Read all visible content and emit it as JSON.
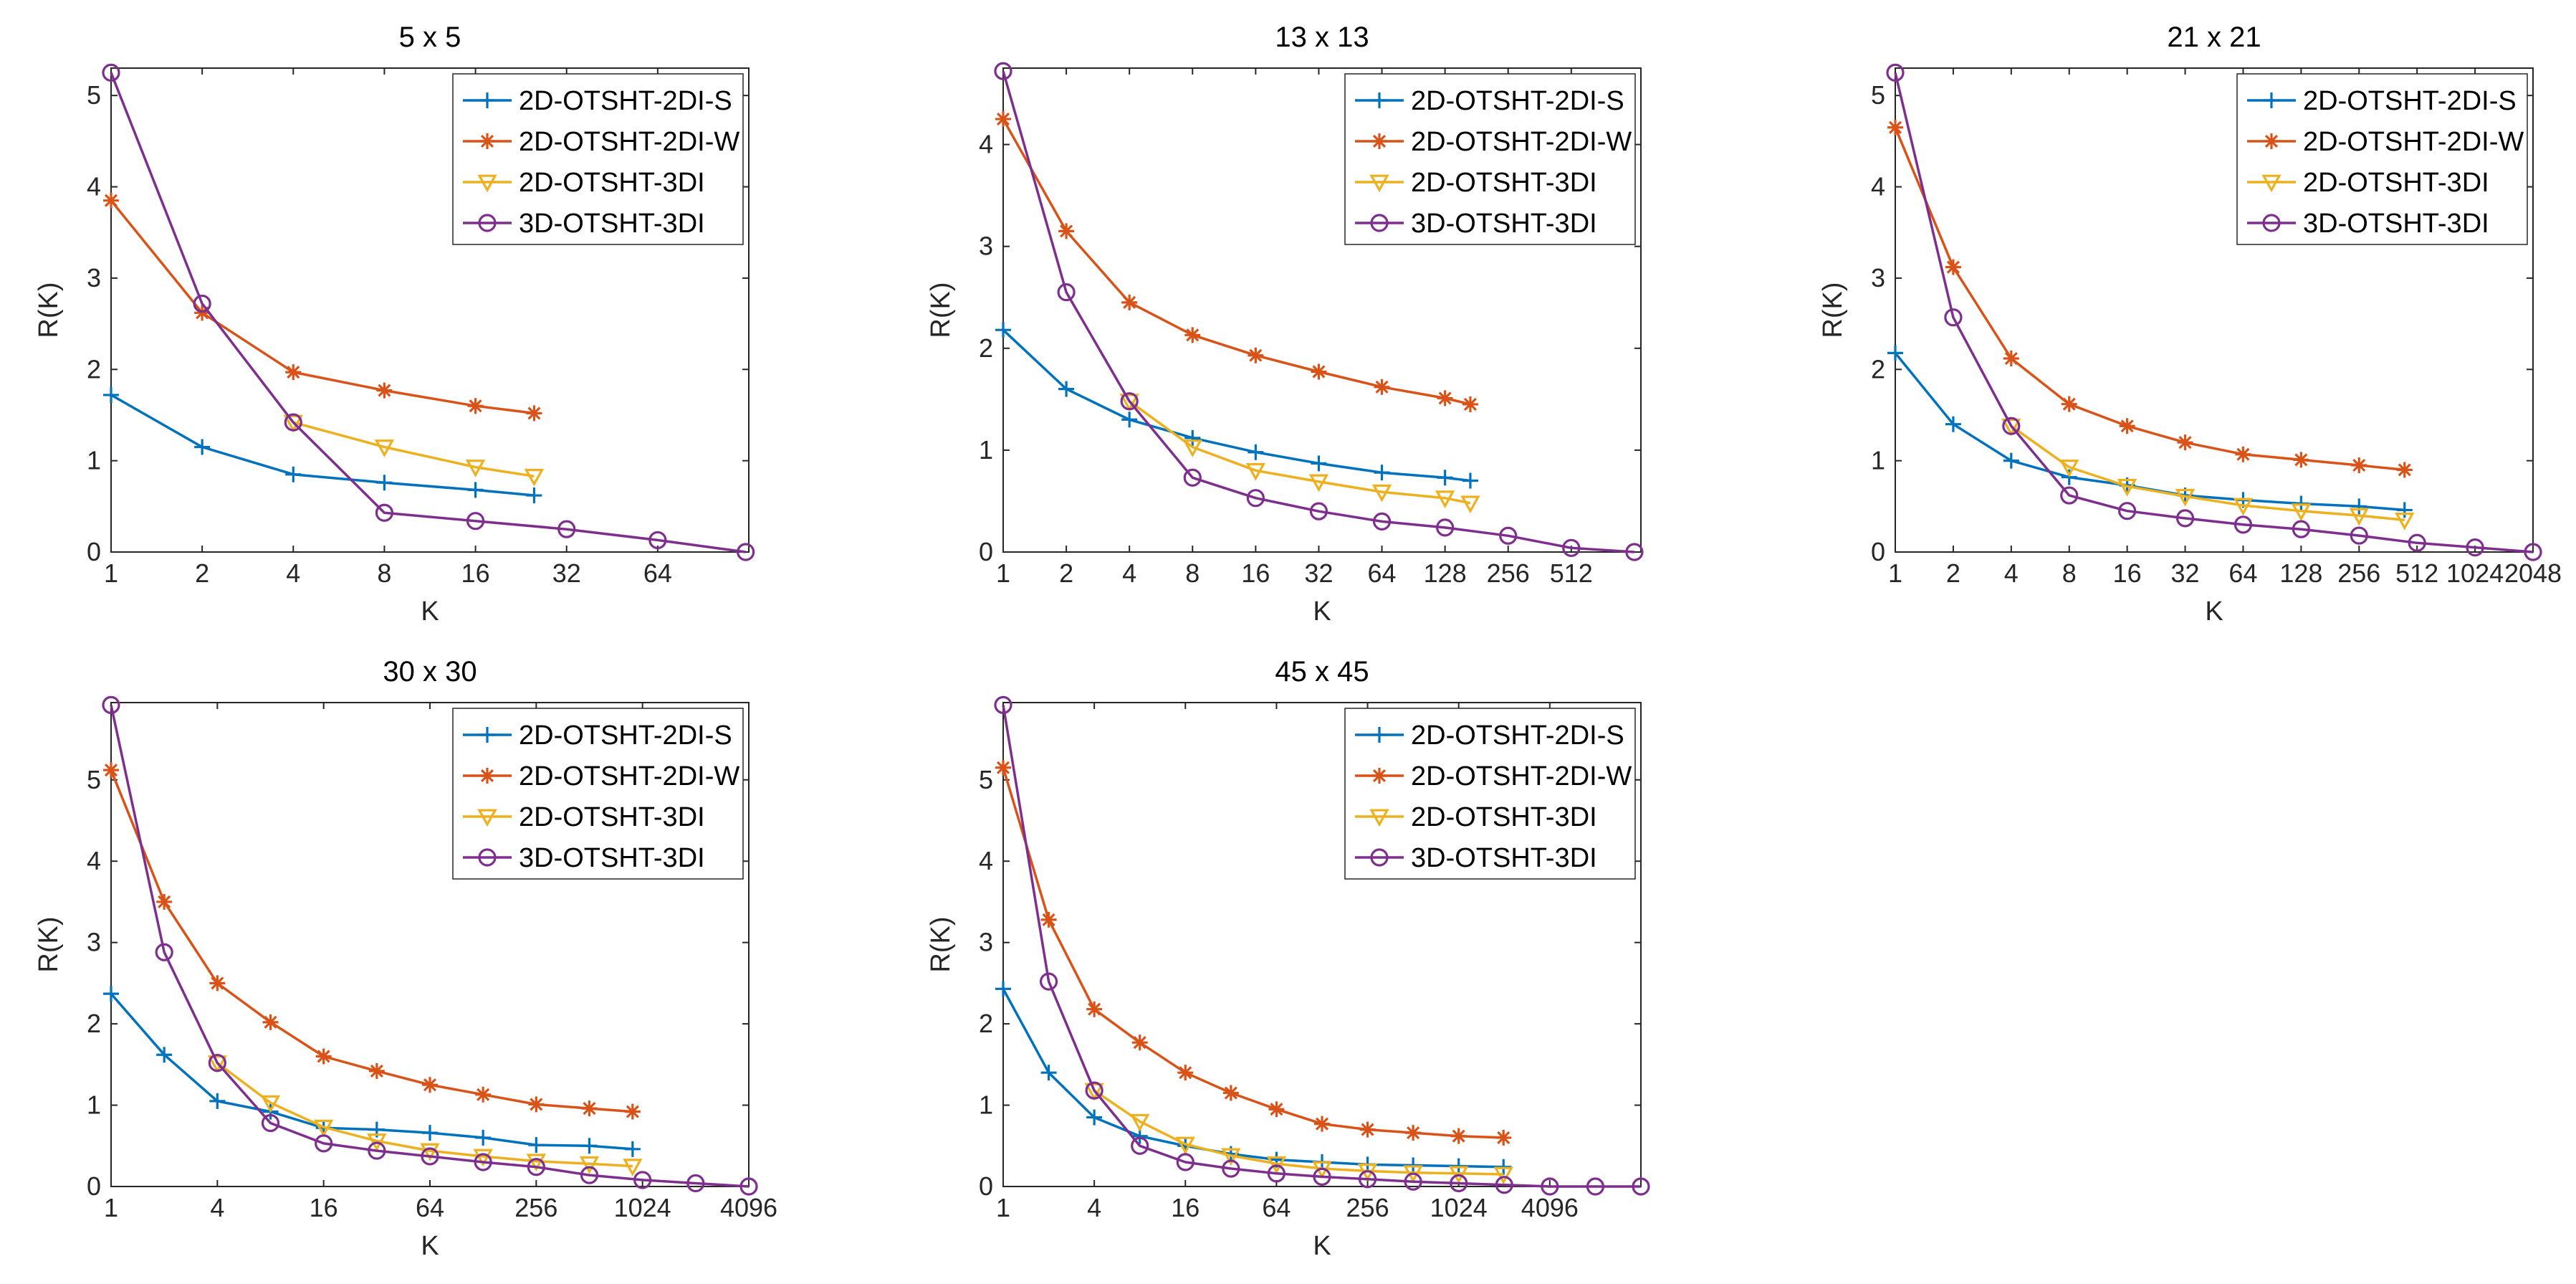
{
  "series_styles": [
    {
      "name": "2D-OTSHT-2DI-S",
      "color": "#0072BD",
      "marker": "plus"
    },
    {
      "name": "2D-OTSHT-2DI-W",
      "color": "#D95319",
      "marker": "star"
    },
    {
      "name": "2D-OTSHT-3DI",
      "color": "#EDB120",
      "marker": "triangle-down"
    },
    {
      "name": "3D-OTSHT-3DI",
      "color": "#7E2F8E",
      "marker": "circle"
    }
  ],
  "chart_data": [
    {
      "type": "line",
      "title": "5 x 5",
      "xlabel": "K",
      "ylabel": "R(K)",
      "xscale": "log2",
      "xlim": [
        1,
        128
      ],
      "ylim": [
        0,
        5.3
      ],
      "xticks": [
        1,
        2,
        4,
        8,
        16,
        32,
        64
      ],
      "xtick_labels": [
        "1",
        "2",
        "4",
        "8",
        "16",
        "32",
        "64"
      ],
      "yticks": [
        0,
        1,
        2,
        3,
        4,
        5
      ],
      "ytick_labels": [
        "0",
        "1",
        "2",
        "3",
        "4",
        "5"
      ],
      "legend": "top-right",
      "series": [
        {
          "name": "2D-OTSHT-2DI-S",
          "x": [
            1,
            2,
            4,
            8,
            16,
            25
          ],
          "y": [
            1.72,
            1.15,
            0.85,
            0.76,
            0.68,
            0.62
          ]
        },
        {
          "name": "2D-OTSHT-2DI-W",
          "x": [
            1,
            2,
            4,
            8,
            16,
            25
          ],
          "y": [
            3.85,
            2.62,
            1.97,
            1.77,
            1.6,
            1.52
          ]
        },
        {
          "name": "2D-OTSHT-3DI",
          "x": [
            4,
            8,
            16,
            25
          ],
          "y": [
            1.42,
            1.15,
            0.93,
            0.83
          ]
        },
        {
          "name": "3D-OTSHT-3DI",
          "x": [
            1,
            2,
            4,
            8,
            16,
            32,
            64,
            125
          ],
          "y": [
            5.25,
            2.72,
            1.42,
            0.43,
            0.34,
            0.25,
            0.13,
            0.0
          ]
        }
      ]
    },
    {
      "type": "line",
      "title": "13 x 13",
      "xlabel": "K",
      "ylabel": "R(K)",
      "xscale": "log2",
      "xlim": [
        1,
        1100
      ],
      "ylim": [
        0,
        4.75
      ],
      "xticks": [
        1,
        2,
        4,
        8,
        16,
        32,
        64,
        128,
        256,
        512
      ],
      "xtick_labels": [
        "1",
        "2",
        "4",
        "8",
        "16",
        "32",
        "64",
        "128",
        "256",
        "512"
      ],
      "yticks": [
        0,
        1,
        2,
        3,
        4
      ],
      "ytick_labels": [
        "0",
        "1",
        "2",
        "3",
        "4"
      ],
      "legend": "top-right",
      "series": [
        {
          "name": "2D-OTSHT-2DI-S",
          "x": [
            1,
            2,
            4,
            8,
            16,
            32,
            64,
            128,
            169
          ],
          "y": [
            2.18,
            1.6,
            1.3,
            1.12,
            0.98,
            0.87,
            0.78,
            0.73,
            0.7
          ]
        },
        {
          "name": "2D-OTSHT-2DI-W",
          "x": [
            1,
            2,
            4,
            8,
            16,
            32,
            64,
            128,
            169
          ],
          "y": [
            4.25,
            3.15,
            2.45,
            2.13,
            1.93,
            1.77,
            1.62,
            1.51,
            1.45
          ]
        },
        {
          "name": "2D-OTSHT-3DI",
          "x": [
            4,
            8,
            16,
            32,
            64,
            128,
            169
          ],
          "y": [
            1.48,
            1.03,
            0.8,
            0.69,
            0.59,
            0.53,
            0.48
          ]
        },
        {
          "name": "3D-OTSHT-3DI",
          "x": [
            1,
            2,
            4,
            8,
            16,
            32,
            64,
            128,
            256,
            512,
            1024
          ],
          "y": [
            4.72,
            2.55,
            1.48,
            0.73,
            0.53,
            0.4,
            0.3,
            0.24,
            0.16,
            0.04,
            0.0
          ]
        }
      ]
    },
    {
      "type": "line",
      "title": "21 x 21",
      "xlabel": "K",
      "ylabel": "R(K)",
      "xscale": "log2",
      "xlim": [
        1,
        2048
      ],
      "ylim": [
        0,
        5.3
      ],
      "xticks": [
        1,
        2,
        4,
        8,
        16,
        32,
        64,
        128,
        256,
        512,
        1024,
        2048
      ],
      "xtick_labels": [
        "1",
        "2",
        "4",
        "8",
        "16",
        "32",
        "64",
        "128",
        "256",
        "512",
        "1024",
        "2048"
      ],
      "yticks": [
        0,
        1,
        2,
        3,
        4,
        5
      ],
      "ytick_labels": [
        "0",
        "1",
        "2",
        "3",
        "4",
        "5"
      ],
      "legend": "top-right",
      "series": [
        {
          "name": "2D-OTSHT-2DI-S",
          "x": [
            1,
            2,
            4,
            8,
            16,
            32,
            64,
            128,
            256,
            441
          ],
          "y": [
            2.18,
            1.4,
            1.0,
            0.82,
            0.73,
            0.62,
            0.57,
            0.53,
            0.5,
            0.46
          ]
        },
        {
          "name": "2D-OTSHT-2DI-W",
          "x": [
            1,
            2,
            4,
            8,
            16,
            32,
            64,
            128,
            256,
            441
          ],
          "y": [
            4.65,
            3.12,
            2.12,
            1.62,
            1.38,
            1.2,
            1.07,
            1.01,
            0.95,
            0.9
          ]
        },
        {
          "name": "2D-OTSHT-3DI",
          "x": [
            4,
            8,
            16,
            32,
            64,
            128,
            256,
            441
          ],
          "y": [
            1.38,
            0.93,
            0.72,
            0.61,
            0.51,
            0.45,
            0.4,
            0.35
          ]
        },
        {
          "name": "3D-OTSHT-3DI",
          "x": [
            1,
            2,
            4,
            8,
            16,
            32,
            64,
            128,
            256,
            512,
            1024,
            2048
          ],
          "y": [
            5.25,
            2.57,
            1.38,
            0.62,
            0.45,
            0.37,
            0.3,
            0.25,
            0.18,
            0.1,
            0.05,
            0.0
          ]
        }
      ]
    },
    {
      "type": "line",
      "title": "30 x 30",
      "xlabel": "K",
      "ylabel": "R(K)",
      "xscale": "log2",
      "xlim": [
        1,
        4096
      ],
      "ylim": [
        0,
        5.95
      ],
      "xticks": [
        1,
        4,
        16,
        64,
        256,
        1024,
        4096
      ],
      "xtick_labels": [
        "1",
        "4",
        "16",
        "64",
        "256",
        "1024",
        "4096"
      ],
      "yticks": [
        0,
        1,
        2,
        3,
        4,
        5
      ],
      "ytick_labels": [
        "0",
        "1",
        "2",
        "3",
        "4",
        "5"
      ],
      "legend": "top-right",
      "series": [
        {
          "name": "2D-OTSHT-2DI-S",
          "x": [
            1,
            2,
            4,
            8,
            16,
            32,
            64,
            128,
            256,
            512,
            900
          ],
          "y": [
            2.37,
            1.62,
            1.05,
            0.92,
            0.72,
            0.7,
            0.66,
            0.6,
            0.51,
            0.5,
            0.46
          ]
        },
        {
          "name": "2D-OTSHT-2DI-W",
          "x": [
            1,
            2,
            4,
            8,
            16,
            32,
            64,
            128,
            256,
            512,
            900
          ],
          "y": [
            5.12,
            3.5,
            2.5,
            2.02,
            1.6,
            1.42,
            1.25,
            1.13,
            1.01,
            0.96,
            0.92
          ]
        },
        {
          "name": "2D-OTSHT-3DI",
          "x": [
            4,
            8,
            16,
            32,
            64,
            128,
            256,
            512,
            900
          ],
          "y": [
            1.52,
            1.03,
            0.73,
            0.56,
            0.44,
            0.37,
            0.31,
            0.28,
            0.25
          ]
        },
        {
          "name": "3D-OTSHT-3DI",
          "x": [
            1,
            2,
            4,
            8,
            16,
            32,
            64,
            128,
            256,
            512,
            1024,
            2048,
            4096
          ],
          "y": [
            5.92,
            2.88,
            1.52,
            0.78,
            0.53,
            0.44,
            0.37,
            0.3,
            0.24,
            0.14,
            0.08,
            0.04,
            0.0
          ]
        }
      ]
    },
    {
      "type": "line",
      "title": "45 x 45",
      "xlabel": "K",
      "ylabel": "R(K)",
      "xscale": "log2",
      "xlim": [
        1,
        16384
      ],
      "ylim": [
        0,
        5.95
      ],
      "xticks": [
        1,
        4,
        16,
        64,
        256,
        1024,
        4096
      ],
      "xtick_labels": [
        "1",
        "4",
        "16",
        "64",
        "256",
        "1024",
        "4096"
      ],
      "yticks": [
        0,
        1,
        2,
        3,
        4,
        5
      ],
      "ytick_labels": [
        "0",
        "1",
        "2",
        "3",
        "4",
        "5"
      ],
      "legend": "top-right",
      "series": [
        {
          "name": "2D-OTSHT-2DI-S",
          "x": [
            1,
            2,
            4,
            8,
            16,
            32,
            64,
            128,
            256,
            512,
            1024,
            2025
          ],
          "y": [
            2.43,
            1.4,
            0.85,
            0.62,
            0.5,
            0.4,
            0.33,
            0.3,
            0.27,
            0.26,
            0.25,
            0.24
          ]
        },
        {
          "name": "2D-OTSHT-2DI-W",
          "x": [
            1,
            2,
            4,
            8,
            16,
            32,
            64,
            128,
            256,
            512,
            1024,
            2025
          ],
          "y": [
            5.15,
            3.28,
            2.18,
            1.77,
            1.4,
            1.15,
            0.95,
            0.77,
            0.7,
            0.66,
            0.62,
            0.6
          ]
        },
        {
          "name": "2D-OTSHT-3DI",
          "x": [
            4,
            8,
            16,
            32,
            64,
            128,
            256,
            512,
            1024,
            2025
          ],
          "y": [
            1.18,
            0.8,
            0.52,
            0.38,
            0.28,
            0.22,
            0.19,
            0.17,
            0.16,
            0.15
          ]
        },
        {
          "name": "3D-OTSHT-3DI",
          "x": [
            1,
            2,
            4,
            8,
            16,
            32,
            64,
            128,
            256,
            512,
            1024,
            2048,
            4096,
            8192,
            16384
          ],
          "y": [
            5.92,
            2.52,
            1.18,
            0.5,
            0.3,
            0.22,
            0.16,
            0.12,
            0.09,
            0.06,
            0.04,
            0.02,
            0.0,
            0.0,
            0.0
          ]
        }
      ]
    }
  ]
}
